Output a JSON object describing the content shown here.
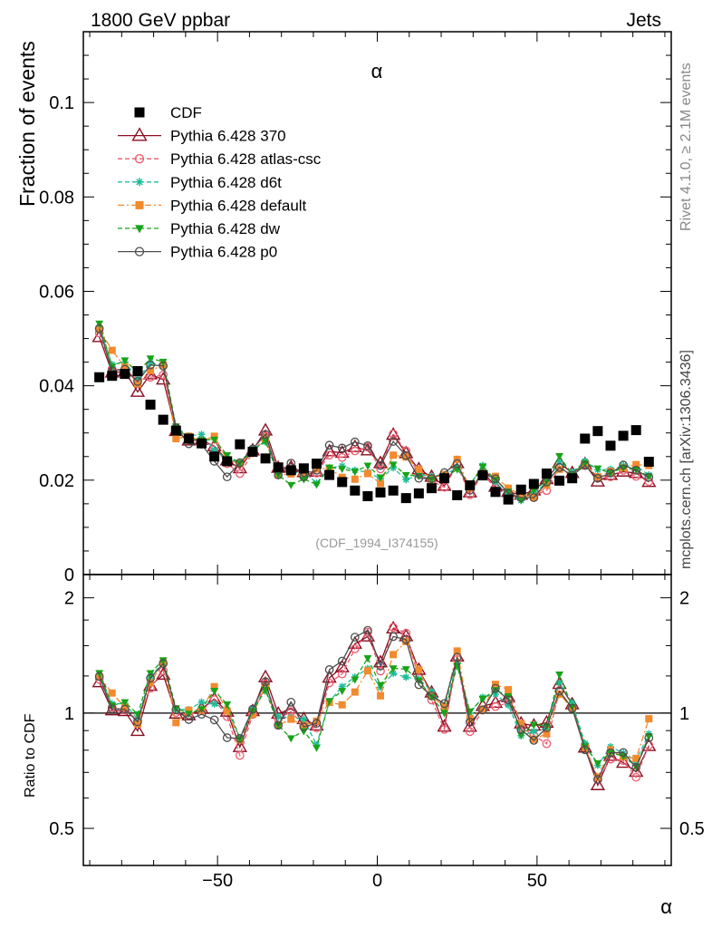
{
  "header": {
    "left": "1800 GeV ppbar",
    "right": "Jets"
  },
  "side_text": {
    "top": "Rivet 4.1.0, ≥ 2.1M events",
    "bottom": "mcplots.cern.ch [arXiv:1306.3436]"
  },
  "chart_data": {
    "type": "line",
    "title": "α",
    "xlabel": "α",
    "ylabel": "Fraction of events",
    "ratio_ylabel": "Ratio to CDF",
    "analysis_tag": "(CDF_1994_I374155)",
    "xlim": [
      -92,
      92
    ],
    "ylim": [
      0,
      0.115
    ],
    "ratio_ylim": [
      0.4,
      2.3
    ],
    "x_ticks": [
      -50,
      0,
      50
    ],
    "x_tick_labels": [
      "−50",
      "0",
      "50"
    ],
    "y_ticks": [
      0,
      0.02,
      0.04,
      0.06,
      0.08,
      0.1
    ],
    "y_tick_labels": [
      "0",
      "0.02",
      "0.04",
      "0.06",
      "0.08",
      "0.1"
    ],
    "ratio_ticks": [
      0.5,
      1,
      2
    ],
    "ratio_tick_labels": [
      "0.5",
      "1",
      "2"
    ],
    "x": [
      -87,
      -83,
      -79,
      -75,
      -71,
      -67,
      -63,
      -59,
      -55,
      -51,
      -47,
      -43,
      -39,
      -35,
      -31,
      -27,
      -23,
      -19,
      -15,
      -11,
      -7,
      -3,
      1,
      5,
      9,
      13,
      17,
      21,
      25,
      29,
      33,
      37,
      41,
      45,
      49,
      53,
      57,
      61,
      65,
      69,
      73,
      77,
      81,
      85
    ],
    "series": [
      {
        "name": "CDF",
        "color": "#000000",
        "marker": "square",
        "line": "none",
        "values": [
          0.0418,
          0.0421,
          0.0425,
          0.0431,
          0.036,
          0.0328,
          0.0305,
          0.0288,
          0.0278,
          0.025,
          0.024,
          0.0276,
          0.026,
          0.0246,
          0.0227,
          0.0221,
          0.0225,
          0.0235,
          0.0211,
          0.0196,
          0.0178,
          0.0166,
          0.0174,
          0.0178,
          0.0162,
          0.0172,
          0.0183,
          0.0204,
          0.0168,
          0.0189,
          0.021,
          0.0175,
          0.0159,
          0.018,
          0.0192,
          0.0214,
          0.0199,
          0.0204,
          0.0288,
          0.0304,
          0.0273,
          0.0294,
          0.0306,
          0.0239
        ]
      },
      {
        "name": "Pythia 6.428 370",
        "color": "#8b0e22",
        "marker": "triangle",
        "line": "solid",
        "values": [
          0.0503,
          0.0428,
          0.043,
          0.0387,
          0.0424,
          0.0413,
          0.0304,
          0.0284,
          0.0285,
          0.0272,
          0.0242,
          0.0225,
          0.0263,
          0.0305,
          0.0226,
          0.0227,
          0.0217,
          0.0218,
          0.0261,
          0.0258,
          0.027,
          0.0263,
          0.0236,
          0.0296,
          0.0257,
          0.0223,
          0.0207,
          0.0188,
          0.0236,
          0.0174,
          0.0219,
          0.0186,
          0.0175,
          0.0169,
          0.0178,
          0.0202,
          0.0237,
          0.0215,
          0.0234,
          0.0197,
          0.0211,
          0.0218,
          0.0215,
          0.0196
        ]
      },
      {
        "name": "Pythia 6.428 atlas-csc",
        "color": "#f05a6e",
        "marker": "circle",
        "line": "dashed",
        "values": [
          0.0512,
          0.0436,
          0.0433,
          0.0413,
          0.0418,
          0.0423,
          0.0306,
          0.0285,
          0.0282,
          0.0271,
          0.0235,
          0.0214,
          0.0258,
          0.0293,
          0.0219,
          0.0223,
          0.0209,
          0.0215,
          0.0253,
          0.0248,
          0.0262,
          0.027,
          0.0224,
          0.0298,
          0.0262,
          0.0212,
          0.0198,
          0.0185,
          0.0232,
          0.0169,
          0.0214,
          0.0182,
          0.0169,
          0.0165,
          0.0168,
          0.0178,
          0.0228,
          0.021,
          0.0237,
          0.0204,
          0.0207,
          0.0221,
          0.0208,
          0.0197
        ]
      },
      {
        "name": "Pythia 6.428 d6t",
        "color": "#1ebd9b",
        "marker": "star",
        "line": "dashed",
        "values": [
          0.0524,
          0.0445,
          0.045,
          0.0415,
          0.0448,
          0.0445,
          0.0312,
          0.0294,
          0.0297,
          0.0264,
          0.0244,
          0.0238,
          0.0267,
          0.0281,
          0.0222,
          0.0215,
          0.0217,
          0.0194,
          0.0226,
          0.023,
          0.0221,
          0.0217,
          0.0203,
          0.0226,
          0.0201,
          0.0211,
          0.0209,
          0.021,
          0.0227,
          0.0189,
          0.0231,
          0.0196,
          0.0167,
          0.0157,
          0.0172,
          0.0195,
          0.0239,
          0.0217,
          0.024,
          0.0222,
          0.0223,
          0.0231,
          0.023,
          0.0211
        ]
      },
      {
        "name": "Pythia 6.428 default",
        "color": "#f28a2e",
        "marker": "square",
        "line": "dashdot",
        "values": [
          0.052,
          0.0475,
          0.044,
          0.0404,
          0.0432,
          0.0444,
          0.0288,
          0.0293,
          0.0283,
          0.0293,
          0.0243,
          0.0235,
          0.0258,
          0.0289,
          0.0211,
          0.0213,
          0.0209,
          0.0224,
          0.0225,
          0.0206,
          0.0202,
          0.0214,
          0.0193,
          0.0253,
          0.0249,
          0.0223,
          0.0203,
          0.0212,
          0.0244,
          0.0183,
          0.0215,
          0.0208,
          0.0183,
          0.0169,
          0.0164,
          0.0189,
          0.0223,
          0.021,
          0.0234,
          0.0207,
          0.0219,
          0.0226,
          0.0233,
          0.0231
        ]
      },
      {
        "name": "Pythia 6.428 dw",
        "color": "#19a319",
        "marker": "triangle-down",
        "line": "dashed",
        "values": [
          0.0532,
          0.0441,
          0.0454,
          0.0428,
          0.0458,
          0.0451,
          0.0314,
          0.0287,
          0.0285,
          0.0286,
          0.0253,
          0.0236,
          0.0263,
          0.0283,
          0.0211,
          0.019,
          0.0202,
          0.0191,
          0.0227,
          0.0224,
          0.0218,
          0.0231,
          0.0206,
          0.0233,
          0.0211,
          0.0209,
          0.0202,
          0.0204,
          0.0223,
          0.0191,
          0.0229,
          0.0201,
          0.0176,
          0.0158,
          0.0179,
          0.0198,
          0.0251,
          0.0212,
          0.0236,
          0.0225,
          0.0215,
          0.0227,
          0.0222,
          0.0208
        ]
      },
      {
        "name": "Pythia 6.428 p0",
        "color": "#4d4d4d",
        "marker": "circle",
        "line": "solid",
        "values": [
          0.0521,
          0.0432,
          0.0435,
          0.0409,
          0.0444,
          0.0442,
          0.0311,
          0.0277,
          0.0276,
          0.024,
          0.0207,
          0.0237,
          0.0266,
          0.0297,
          0.0211,
          0.0236,
          0.0207,
          0.0221,
          0.0274,
          0.0268,
          0.0281,
          0.0273,
          0.0231,
          0.0282,
          0.0252,
          0.0204,
          0.0203,
          0.0216,
          0.0235,
          0.0179,
          0.0214,
          0.0203,
          0.0172,
          0.0163,
          0.0163,
          0.0196,
          0.0227,
          0.021,
          0.0231,
          0.0204,
          0.0215,
          0.0232,
          0.0221,
          0.0206
        ]
      }
    ]
  }
}
